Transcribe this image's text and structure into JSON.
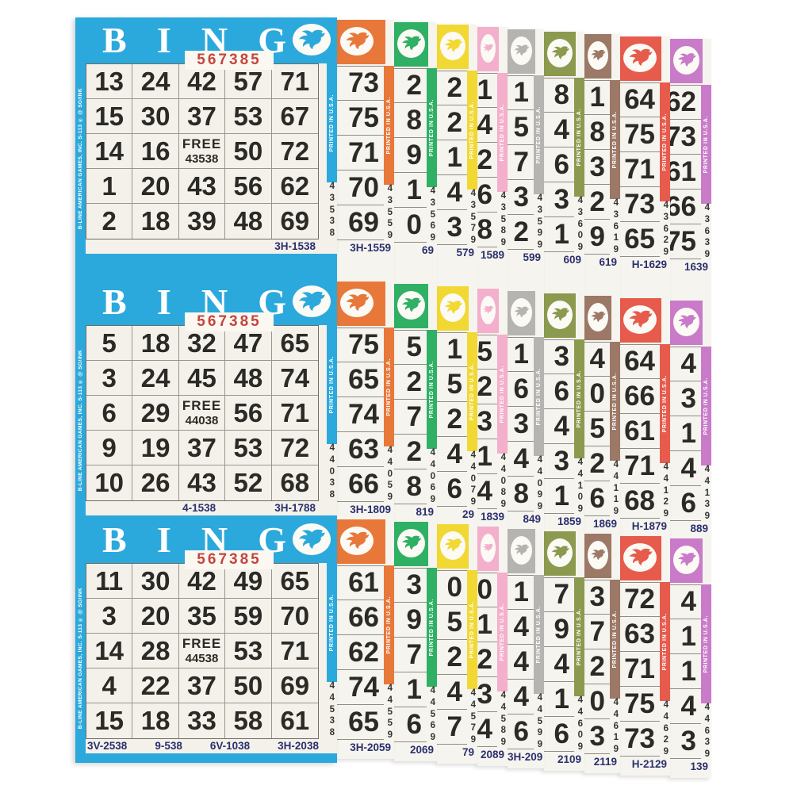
{
  "brand": {
    "serial": "567385",
    "title_letters": [
      "B",
      "I",
      "N",
      "G"
    ],
    "band_text": "PRINTED IN U.S.A.",
    "left_edge_text": "B-LINE   AMERICAN GAMES, INC. S-113 ®  @ SO/INK"
  },
  "main_card": {
    "name": "blue-bingo-card",
    "color": "#2ca9dc",
    "sections": [
      {
        "rows": [
          [
            "13",
            "24",
            "42",
            "57",
            "71"
          ],
          [
            "15",
            "30",
            "37",
            "53",
            "67"
          ],
          [
            "14",
            "16",
            "FREE",
            "50",
            "72"
          ],
          [
            "1",
            "20",
            "43",
            "56",
            "62"
          ],
          [
            "2",
            "18",
            "39",
            "48",
            "69"
          ]
        ],
        "free_number": "43538",
        "small_digits": [
          "4",
          "3",
          "5",
          "3",
          "8"
        ],
        "footers": [
          "3H-1538"
        ]
      },
      {
        "rows": [
          [
            "5",
            "18",
            "32",
            "47",
            "65"
          ],
          [
            "3",
            "24",
            "45",
            "48",
            "74"
          ],
          [
            "6",
            "29",
            "FREE",
            "56",
            "71"
          ],
          [
            "9",
            "19",
            "37",
            "53",
            "72"
          ],
          [
            "10",
            "26",
            "43",
            "52",
            "68"
          ]
        ],
        "free_number": "44038",
        "small_digits": [
          "4",
          "4",
          "0",
          "3",
          "8"
        ],
        "footers": [
          "4-1538",
          "3H-1788"
        ]
      },
      {
        "rows": [
          [
            "11",
            "30",
            "42",
            "49",
            "65"
          ],
          [
            "3",
            "20",
            "35",
            "59",
            "70"
          ],
          [
            "14",
            "28",
            "FREE",
            "53",
            "71"
          ],
          [
            "4",
            "22",
            "37",
            "50",
            "69"
          ],
          [
            "15",
            "18",
            "33",
            "58",
            "61"
          ]
        ],
        "free_number": "44538",
        "small_digits": [
          "4",
          "4",
          "5",
          "3",
          "8"
        ],
        "footers": [
          "3V-2538",
          "9-538",
          "6V-1038",
          "3H-2038"
        ]
      }
    ]
  },
  "sheets": [
    {
      "name": "orange-sheet",
      "color": "#e8783a",
      "sections": [
        {
          "numbers": [
            "73",
            "75",
            "71",
            "70",
            "69"
          ],
          "small_digits": [
            "4",
            "3",
            "5",
            "5",
            "9"
          ],
          "footer": "3H-1559"
        },
        {
          "numbers": [
            "75",
            "65",
            "74",
            "63",
            "66"
          ],
          "small_digits": [
            "4",
            "4",
            "0",
            "5",
            "9"
          ],
          "footer": "3H-1809"
        },
        {
          "numbers": [
            "61",
            "66",
            "62",
            "74",
            "65"
          ],
          "small_digits": [
            "4",
            "4",
            "5",
            "5",
            "9"
          ],
          "footer": "3H-2059"
        }
      ]
    },
    {
      "name": "green-sheet",
      "color": "#2fb065",
      "sections": [
        {
          "numbers": [
            "2",
            "8",
            "9",
            "1",
            "0"
          ],
          "small_digits": [
            "4",
            "3",
            "5",
            "6",
            "9"
          ],
          "footer": "69"
        },
        {
          "numbers": [
            "5",
            "2",
            "7",
            "2",
            "8"
          ],
          "small_digits": [
            "4",
            "4",
            "0",
            "6",
            "9"
          ],
          "footer": "819"
        },
        {
          "numbers": [
            "3",
            "9",
            "7",
            "1",
            "6"
          ],
          "small_digits": [
            "4",
            "4",
            "5",
            "6",
            "9"
          ],
          "footer": "2069"
        }
      ]
    },
    {
      "name": "yellow-sheet",
      "color": "#f1d832",
      "sections": [
        {
          "numbers": [
            "2",
            "2",
            "1",
            "4",
            "3"
          ],
          "small_digits": [
            "4",
            "3",
            "5",
            "7",
            "9"
          ],
          "footer": "579"
        },
        {
          "numbers": [
            "1",
            "5",
            "2",
            "4",
            "6"
          ],
          "small_digits": [
            "4",
            "4",
            "0",
            "7",
            "9"
          ],
          "footer": "29"
        },
        {
          "numbers": [
            "0",
            "5",
            "2",
            "4",
            "7"
          ],
          "small_digits": [
            "4",
            "4",
            "5",
            "7",
            "9"
          ],
          "footer": "79"
        }
      ]
    },
    {
      "name": "pink-sheet",
      "color": "#f3afcb",
      "sections": [
        {
          "numbers": [
            "61",
            "74",
            "2",
            "6",
            "8"
          ],
          "small_digits": [
            "4",
            "3",
            "5",
            "8",
            "9"
          ],
          "footer": "1589"
        },
        {
          "numbers": [
            "5",
            "2",
            "3",
            "1",
            "4"
          ],
          "small_digits": [
            "4",
            "4",
            "0",
            "8",
            "9"
          ],
          "footer": "1839"
        },
        {
          "numbers": [
            "70",
            "61",
            "72",
            "73",
            "64"
          ],
          "small_digits": [
            "4",
            "4",
            "5",
            "8",
            "9"
          ],
          "footer": "2089"
        }
      ]
    },
    {
      "name": "gray-sheet",
      "color": "#b5b4b0",
      "sections": [
        {
          "numbers": [
            "1",
            "5",
            "7",
            "3",
            "2"
          ],
          "small_digits": [
            "4",
            "3",
            "5",
            "9",
            "9"
          ],
          "footer": "599"
        },
        {
          "numbers": [
            "1",
            "6",
            "3",
            "4",
            "8"
          ],
          "small_digits": [
            "4",
            "4",
            "0",
            "9",
            "9"
          ],
          "footer": "849"
        },
        {
          "numbers": [
            "1",
            "4",
            "4",
            "4",
            "6"
          ],
          "small_digits": [
            "4",
            "4",
            "5",
            "9",
            "9"
          ],
          "footer": "3H-2099"
        }
      ]
    },
    {
      "name": "olive-sheet",
      "color": "#8b9a4f",
      "sections": [
        {
          "numbers": [
            "8",
            "4",
            "6",
            "3",
            "1"
          ],
          "small_digits": [
            "4",
            "3",
            "6",
            "0",
            "9"
          ],
          "footer": "609"
        },
        {
          "numbers": [
            "3",
            "6",
            "4",
            "3",
            "1"
          ],
          "small_digits": [
            "4",
            "4",
            "1",
            "0",
            "9"
          ],
          "footer": "1859"
        },
        {
          "numbers": [
            "7",
            "9",
            "4",
            "1",
            "6"
          ],
          "small_digits": [
            "4",
            "4",
            "6",
            "0",
            "9"
          ],
          "footer": "2109"
        }
      ]
    },
    {
      "name": "brown-sheet",
      "color": "#9c7866",
      "sections": [
        {
          "numbers": [
            "1",
            "8",
            "3",
            "2",
            "9"
          ],
          "small_digits": [
            "4",
            "3",
            "6",
            "1",
            "9"
          ],
          "footer": "619"
        },
        {
          "numbers": [
            "4",
            "0",
            "5",
            "2",
            "6"
          ],
          "small_digits": [
            "4",
            "4",
            "1",
            "1",
            "9"
          ],
          "footer": "1869"
        },
        {
          "numbers": [
            "3",
            "7",
            "2",
            "0",
            "3"
          ],
          "small_digits": [
            "4",
            "4",
            "6",
            "1",
            "9"
          ],
          "footer": "2119"
        }
      ]
    },
    {
      "name": "red-sheet",
      "color": "#e75b4d",
      "sections": [
        {
          "numbers": [
            "64",
            "75",
            "71",
            "73",
            "65"
          ],
          "small_digits": [
            "4",
            "3",
            "6",
            "2",
            "9"
          ],
          "footer": "H-1629"
        },
        {
          "numbers": [
            "64",
            "66",
            "61",
            "71",
            "68"
          ],
          "small_digits": [
            "4",
            "4",
            "1",
            "2",
            "9"
          ],
          "footer": "H-1879"
        },
        {
          "numbers": [
            "72",
            "63",
            "71",
            "75",
            "73"
          ],
          "small_digits": [
            "4",
            "4",
            "6",
            "2",
            "9"
          ],
          "footer": "H-2129"
        }
      ]
    },
    {
      "name": "purple-sheet",
      "color": "#c97bca",
      "sections": [
        {
          "numbers": [
            "62",
            "73",
            "61",
            "66",
            "75"
          ],
          "small_digits": [
            "4",
            "3",
            "6",
            "3",
            "9"
          ],
          "footer": "1639"
        },
        {
          "numbers": [
            "4",
            "3",
            "1",
            "4",
            "6"
          ],
          "small_digits": [
            "4",
            "4",
            "1",
            "3",
            "9"
          ],
          "footer": "889"
        },
        {
          "numbers": [
            "4",
            "1",
            "1",
            "4",
            "3"
          ],
          "small_digits": [
            "4",
            "4",
            "6",
            "3",
            "9"
          ],
          "footer": "139"
        }
      ]
    }
  ]
}
